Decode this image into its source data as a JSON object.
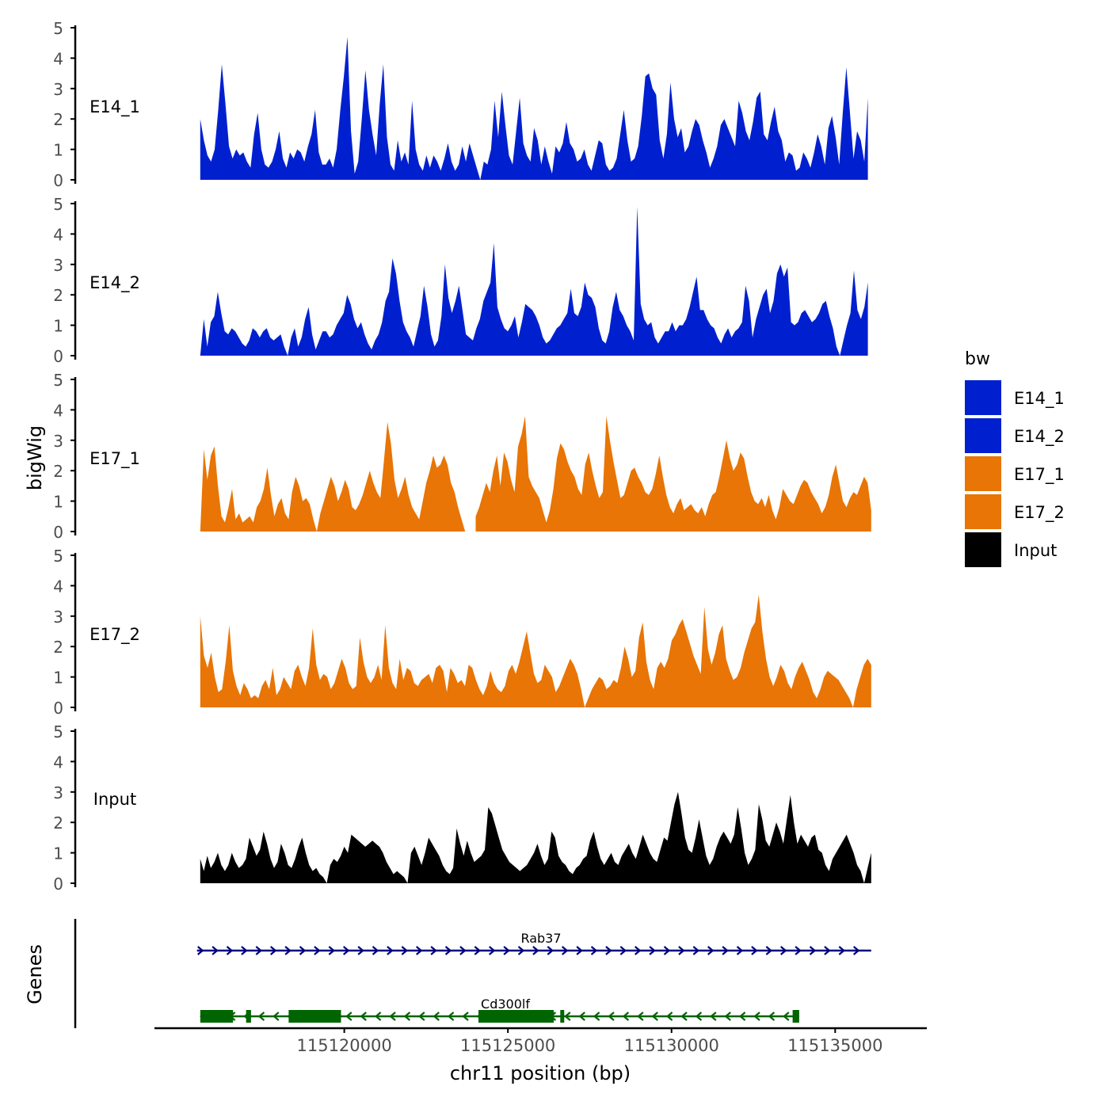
{
  "chart_data": {
    "type": "area",
    "ylabel": "bigWig",
    "xlabel": "chr11 position (bp)",
    "ylim": [
      0,
      5
    ],
    "y_ticks": [
      "0",
      "1",
      "2",
      "3",
      "4",
      "5"
    ],
    "xlim": [
      115114200,
      115137800
    ],
    "x_ticks": [
      {
        "value": 115120000,
        "label": "115120000"
      },
      {
        "value": 115125000,
        "label": "115125000"
      },
      {
        "value": 115130000,
        "label": "115130000"
      },
      {
        "value": 115135000,
        "label": "115135000"
      }
    ],
    "legend": {
      "title": "bw",
      "position": "right",
      "entries": [
        {
          "name": "E14_1",
          "color": "#0020D0"
        },
        {
          "name": "E14_2",
          "color": "#0020D0"
        },
        {
          "name": "E17_1",
          "color": "#E87505"
        },
        {
          "name": "E17_2",
          "color": "#E87505"
        },
        {
          "name": "Input",
          "color": "#000000"
        }
      ]
    },
    "genes_label": "Genes",
    "series": [
      {
        "name": "E14_1",
        "color": "#0020D0",
        "x_start": 115115600,
        "x_end": 115136000,
        "values": [
          2.0,
          1.3,
          0.8,
          0.6,
          1.0,
          2.3,
          3.8,
          2.5,
          1.1,
          0.7,
          1.0,
          0.8,
          0.9,
          0.6,
          0.4,
          1.5,
          2.2,
          1.0,
          0.5,
          0.4,
          0.6,
          1.0,
          1.6,
          0.7,
          0.4,
          0.9,
          0.7,
          1.0,
          0.9,
          0.6,
          1.1,
          1.5,
          2.3,
          0.9,
          0.5,
          0.5,
          0.7,
          0.4,
          1.0,
          2.3,
          3.4,
          4.7,
          1.6,
          0.2,
          0.6,
          2.0,
          3.6,
          2.3,
          1.5,
          0.8,
          2.5,
          3.8,
          1.4,
          0.5,
          0.3,
          1.3,
          0.6,
          0.9,
          0.5,
          2.6,
          1.0,
          0.5,
          0.3,
          0.8,
          0.4,
          0.8,
          0.6,
          0.3,
          0.7,
          1.2,
          0.6,
          0.3,
          0.5,
          1.1,
          0.6,
          1.2,
          0.8,
          0.4,
          0.0,
          0.6,
          0.5,
          1.0,
          2.6,
          1.4,
          2.9,
          1.8,
          0.8,
          0.5,
          1.6,
          2.7,
          1.2,
          0.8,
          0.6,
          1.7,
          1.3,
          0.5,
          1.1,
          0.6,
          0.2,
          1.1,
          0.9,
          1.2,
          1.9,
          1.2,
          1.0,
          0.6,
          0.7,
          1.0,
          0.5,
          0.3,
          0.8,
          1.3,
          1.2,
          0.5,
          0.3,
          0.4,
          0.7,
          1.5,
          2.3,
          1.3,
          0.6,
          0.7,
          1.1,
          2.1,
          3.4,
          3.5,
          3.0,
          2.8,
          1.3,
          0.7,
          1.5,
          3.2,
          2.0,
          1.4,
          1.7,
          0.9,
          1.1,
          1.6,
          2.0,
          1.8,
          1.3,
          0.9,
          0.4,
          0.7,
          1.1,
          1.8,
          2.0,
          1.7,
          1.4,
          1.1,
          2.6,
          2.2,
          1.6,
          1.3,
          1.9,
          2.7,
          2.9,
          1.5,
          1.3,
          1.9,
          2.4,
          1.6,
          1.3,
          0.6,
          0.9,
          0.8,
          0.3,
          0.4,
          0.9,
          0.7,
          0.4,
          0.9,
          1.5,
          1.1,
          0.5,
          1.7,
          2.1,
          1.4,
          0.5,
          2.2,
          3.7,
          2.2,
          0.7,
          1.6,
          1.3,
          0.6,
          2.7
        ]
      },
      {
        "name": "E14_2",
        "color": "#0020D0",
        "x_start": 115115600,
        "x_end": 115136000,
        "values": [
          0.0,
          1.2,
          0.3,
          1.1,
          1.3,
          2.1,
          1.4,
          0.8,
          0.7,
          0.9,
          0.8,
          0.6,
          0.4,
          0.3,
          0.5,
          0.9,
          0.8,
          0.6,
          0.8,
          0.9,
          0.6,
          0.5,
          0.6,
          0.7,
          0.3,
          0.0,
          0.6,
          0.9,
          0.3,
          0.6,
          1.2,
          1.6,
          0.7,
          0.2,
          0.5,
          0.8,
          0.8,
          0.6,
          0.7,
          1.0,
          1.2,
          1.4,
          2.0,
          1.7,
          1.2,
          0.9,
          1.1,
          0.7,
          0.4,
          0.2,
          0.5,
          0.7,
          1.1,
          1.8,
          2.1,
          3.2,
          2.7,
          1.8,
          1.1,
          0.8,
          0.6,
          0.3,
          0.8,
          1.3,
          2.3,
          1.6,
          0.7,
          0.3,
          0.5,
          1.3,
          3.0,
          1.9,
          1.4,
          1.8,
          2.3,
          1.5,
          0.7,
          0.6,
          0.5,
          0.9,
          1.2,
          1.8,
          2.1,
          2.4,
          3.7,
          1.6,
          1.2,
          0.9,
          0.8,
          1.0,
          1.3,
          0.6,
          1.1,
          1.7,
          1.6,
          1.5,
          1.3,
          1.0,
          0.6,
          0.4,
          0.5,
          0.7,
          0.9,
          1.0,
          1.2,
          1.4,
          2.2,
          1.4,
          1.3,
          1.6,
          2.4,
          2.0,
          1.9,
          1.6,
          0.9,
          0.5,
          0.4,
          0.8,
          1.6,
          2.1,
          1.5,
          1.3,
          1.0,
          0.8,
          0.5,
          4.9,
          1.7,
          1.2,
          1.0,
          1.1,
          0.6,
          0.4,
          0.6,
          0.8,
          0.8,
          1.1,
          0.8,
          1.0,
          1.0,
          1.2,
          1.6,
          2.1,
          2.6,
          1.5,
          1.5,
          1.2,
          1.0,
          0.9,
          0.6,
          0.4,
          0.7,
          0.9,
          0.6,
          0.8,
          0.9,
          1.1,
          2.3,
          1.8,
          0.6,
          1.2,
          1.6,
          2.0,
          2.2,
          1.4,
          1.8,
          2.7,
          3.0,
          2.6,
          2.9,
          1.1,
          1.0,
          1.1,
          1.4,
          1.5,
          1.3,
          1.1,
          1.2,
          1.4,
          1.7,
          1.8,
          1.3,
          0.9,
          0.3,
          0.0,
          0.5,
          1.0,
          1.4,
          2.8,
          1.5,
          1.2,
          1.6,
          2.4
        ]
      },
      {
        "name": "E17_1",
        "color": "#E87505",
        "x_start": 115115600,
        "x_end": 115136100,
        "values": [
          0.0,
          2.7,
          1.7,
          2.5,
          2.8,
          1.5,
          0.5,
          0.3,
          0.8,
          1.4,
          0.4,
          0.6,
          0.3,
          0.4,
          0.5,
          0.3,
          0.8,
          1.0,
          1.4,
          2.1,
          1.2,
          0.5,
          0.9,
          1.1,
          0.6,
          0.4,
          1.3,
          1.8,
          1.5,
          1.0,
          1.1,
          0.9,
          0.4,
          0.0,
          0.6,
          1.0,
          1.4,
          1.8,
          1.5,
          1.0,
          1.3,
          1.7,
          1.4,
          0.8,
          0.7,
          0.9,
          1.2,
          1.6,
          2.0,
          1.6,
          1.3,
          1.1,
          2.3,
          3.6,
          2.9,
          1.7,
          1.1,
          1.4,
          1.8,
          1.2,
          0.8,
          0.6,
          0.4,
          1.0,
          1.6,
          2.0,
          2.5,
          2.1,
          2.2,
          2.5,
          2.2,
          1.6,
          1.3,
          0.8,
          0.4,
          0.0,
          null,
          null,
          0.5,
          0.8,
          1.2,
          1.6,
          1.3,
          2.0,
          2.5,
          1.5,
          2.6,
          2.3,
          1.7,
          1.3,
          2.8,
          3.2,
          3.8,
          1.8,
          1.5,
          1.3,
          1.1,
          0.7,
          0.3,
          0.7,
          1.4,
          2.4,
          2.9,
          2.7,
          2.3,
          2.0,
          1.8,
          1.4,
          1.2,
          2.2,
          2.6,
          2.0,
          1.5,
          1.1,
          1.3,
          3.8,
          3.0,
          2.3,
          1.7,
          1.1,
          1.2,
          1.6,
          2.0,
          2.1,
          1.8,
          1.6,
          1.3,
          1.2,
          1.4,
          1.9,
          2.5,
          1.8,
          1.2,
          0.8,
          0.6,
          0.9,
          1.1,
          0.7,
          0.8,
          0.9,
          0.7,
          0.6,
          0.8,
          0.5,
          0.9,
          1.2,
          1.3,
          1.8,
          2.4,
          3.0,
          2.4,
          2.0,
          2.2,
          2.6,
          2.4,
          1.8,
          1.3,
          1.0,
          0.9,
          1.1,
          0.8,
          1.2,
          0.7,
          0.4,
          0.8,
          1.4,
          1.2,
          1.0,
          0.9,
          1.2,
          1.5,
          1.7,
          1.6,
          1.3,
          1.1,
          0.9,
          0.6,
          0.8,
          1.2,
          1.8,
          2.2,
          1.6,
          1.0,
          0.8,
          1.1,
          1.3,
          1.2,
          1.5,
          1.8,
          1.6,
          0.7
        ]
      },
      {
        "name": "E17_2",
        "color": "#E87505",
        "x_start": 115115600,
        "x_end": 115136100,
        "values": [
          3.0,
          1.7,
          1.3,
          1.8,
          1.0,
          0.5,
          0.6,
          1.5,
          2.7,
          1.2,
          0.7,
          0.4,
          0.8,
          0.6,
          0.3,
          0.4,
          0.3,
          0.7,
          0.9,
          0.6,
          1.3,
          0.4,
          0.6,
          1.0,
          0.8,
          0.6,
          1.2,
          1.4,
          1.0,
          0.7,
          1.3,
          2.6,
          1.4,
          0.9,
          1.1,
          1.0,
          0.6,
          0.8,
          1.2,
          1.6,
          1.3,
          0.8,
          0.6,
          0.7,
          2.3,
          1.5,
          1.0,
          0.8,
          1.0,
          1.4,
          0.9,
          2.7,
          1.3,
          0.8,
          0.6,
          1.6,
          0.9,
          1.3,
          1.2,
          0.8,
          0.7,
          0.9,
          1.0,
          1.1,
          0.8,
          1.3,
          1.4,
          1.2,
          0.5,
          1.3,
          1.1,
          0.8,
          0.9,
          0.7,
          1.4,
          1.3,
          0.9,
          0.6,
          0.4,
          0.7,
          1.2,
          0.8,
          0.6,
          0.5,
          0.7,
          1.2,
          1.4,
          1.1,
          1.5,
          2.0,
          2.5,
          1.8,
          1.1,
          0.8,
          0.9,
          1.4,
          1.2,
          1.0,
          0.5,
          0.7,
          1.0,
          1.3,
          1.6,
          1.4,
          1.1,
          0.6,
          0.0,
          0.3,
          0.6,
          0.8,
          1.0,
          0.9,
          0.6,
          0.7,
          0.9,
          0.8,
          1.3,
          2.0,
          1.6,
          1.0,
          1.2,
          2.3,
          2.8,
          1.5,
          0.9,
          0.6,
          1.3,
          1.5,
          1.3,
          1.6,
          2.2,
          2.4,
          2.7,
          2.9,
          2.5,
          2.1,
          1.7,
          1.4,
          1.1,
          3.3,
          1.9,
          1.4,
          1.8,
          2.4,
          2.7,
          1.6,
          1.2,
          0.9,
          1.0,
          1.3,
          1.8,
          2.2,
          2.6,
          2.8,
          3.7,
          2.5,
          1.6,
          1.0,
          0.7,
          1.0,
          1.4,
          1.2,
          0.8,
          0.6,
          1.0,
          1.3,
          1.5,
          1.2,
          0.9,
          0.5,
          0.3,
          0.6,
          1.0,
          1.2,
          1.1,
          1.0,
          0.9,
          0.7,
          0.5,
          0.3,
          0.0,
          0.6,
          1.0,
          1.4,
          1.6,
          1.4
        ]
      },
      {
        "name": "Input",
        "color": "#000000",
        "x_start": 115115600,
        "x_end": 115136100,
        "values": [
          0.8,
          0.4,
          0.9,
          0.5,
          0.7,
          1.0,
          0.6,
          0.4,
          0.6,
          1.0,
          0.7,
          0.5,
          0.6,
          0.8,
          1.5,
          1.2,
          0.9,
          1.1,
          1.7,
          1.3,
          0.8,
          0.5,
          0.7,
          1.3,
          1.0,
          0.6,
          0.5,
          0.8,
          1.2,
          1.5,
          1.0,
          0.6,
          0.4,
          0.5,
          0.3,
          0.2,
          0.0,
          0.6,
          0.8,
          0.7,
          0.9,
          1.2,
          1.0,
          1.6,
          1.5,
          1.4,
          1.3,
          1.2,
          1.3,
          1.4,
          1.3,
          1.2,
          1.0,
          0.7,
          0.5,
          0.3,
          0.4,
          0.3,
          0.2,
          0.0,
          1.0,
          1.2,
          0.9,
          0.6,
          1.0,
          1.5,
          1.3,
          1.1,
          0.9,
          0.6,
          0.4,
          0.3,
          0.5,
          1.8,
          1.3,
          0.9,
          1.4,
          1.0,
          0.7,
          0.8,
          0.9,
          1.1,
          2.5,
          2.3,
          1.9,
          1.5,
          1.1,
          0.9,
          0.7,
          0.6,
          0.5,
          0.4,
          0.5,
          0.6,
          0.8,
          1.0,
          1.3,
          0.9,
          0.6,
          0.8,
          1.7,
          1.5,
          0.9,
          0.7,
          0.6,
          0.4,
          0.3,
          0.5,
          0.6,
          0.8,
          0.9,
          1.4,
          1.7,
          1.2,
          0.8,
          0.6,
          0.8,
          1.0,
          0.7,
          0.6,
          0.9,
          1.1,
          1.3,
          1.0,
          0.8,
          1.2,
          1.6,
          1.3,
          1.0,
          0.8,
          0.7,
          1.1,
          1.5,
          1.4,
          2.0,
          2.6,
          3.0,
          2.3,
          1.5,
          1.1,
          1.0,
          1.5,
          2.1,
          1.5,
          0.9,
          0.6,
          0.8,
          1.2,
          1.5,
          1.7,
          1.5,
          1.3,
          1.6,
          2.5,
          1.8,
          1.0,
          0.6,
          0.8,
          1.1,
          2.6,
          2.1,
          1.4,
          1.2,
          1.6,
          2.0,
          1.7,
          1.3,
          2.1,
          2.9,
          2.0,
          1.3,
          1.6,
          1.4,
          1.2,
          1.5,
          1.6,
          1.1,
          1.0,
          0.6,
          0.4,
          0.8,
          1.0,
          1.2,
          1.4,
          1.6,
          1.3,
          1.0,
          0.6,
          0.4,
          0.0,
          0.5,
          1.0
        ]
      }
    ],
    "genes": [
      {
        "name": "Rab37",
        "strand": "+",
        "color": "#000080",
        "start": 115115500,
        "end": 115136100,
        "exons": []
      },
      {
        "name": "Cd300lf",
        "strand": "-",
        "color": "#006400",
        "start": 115115600,
        "end": 115133900,
        "exons": [
          [
            115115600,
            115116600
          ],
          [
            115117000,
            115117150
          ],
          [
            115118300,
            115119900
          ],
          [
            115124100,
            115126400
          ],
          [
            115126600,
            115126700
          ],
          [
            115133700,
            115133900
          ]
        ]
      }
    ]
  }
}
